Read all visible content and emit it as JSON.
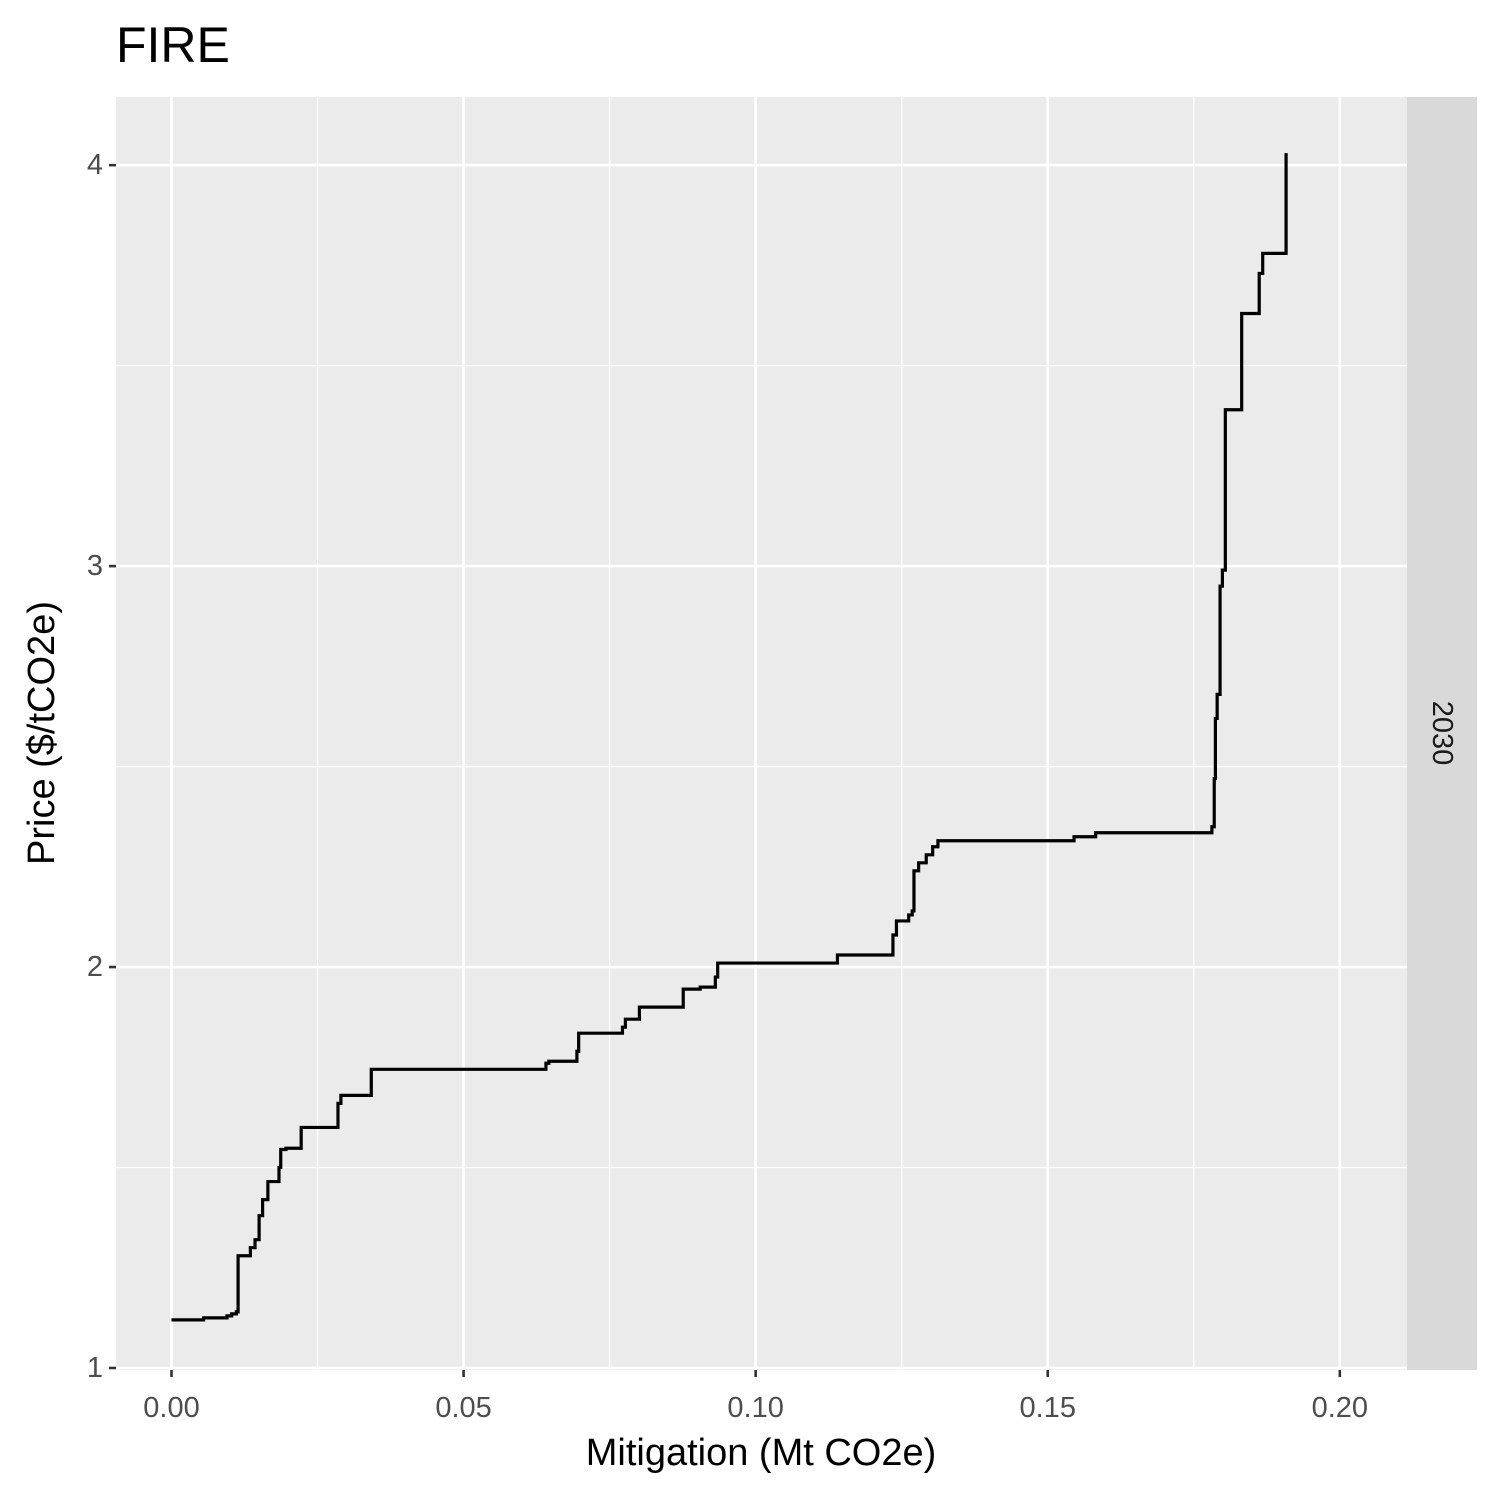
{
  "chart_data": {
    "type": "line",
    "title": "FIRE",
    "xlabel": "Mitigation (Mt CO2e)",
    "ylabel": "Price ($/tCO2e)",
    "facet_label": "2030",
    "xlim": [
      -0.0095,
      0.2115
    ],
    "ylim": [
      0.995,
      4.17
    ],
    "x_ticks": [
      0.0,
      0.05,
      0.1,
      0.15,
      0.2
    ],
    "x_tick_labels": [
      "0.00",
      "0.05",
      "0.10",
      "0.15",
      "0.20"
    ],
    "y_ticks": [
      1,
      2,
      3,
      4
    ],
    "y_tick_labels": [
      "1",
      "2",
      "3",
      "4"
    ],
    "grid": true,
    "colors": {
      "panel": "#ebebeb",
      "grid": "#ffffff",
      "strip": "#d9d9d9",
      "line": "#000000",
      "ticks": "#333333"
    },
    "series": [
      {
        "step": "hv",
        "x": [
          0.0,
          0.0055,
          0.0095,
          0.0103,
          0.0111,
          0.0114,
          0.0135,
          0.0143,
          0.015,
          0.0156,
          0.0165,
          0.0184,
          0.0187,
          0.0196,
          0.0222,
          0.0285,
          0.029,
          0.0342,
          0.0641,
          0.0646,
          0.0694,
          0.0697,
          0.0772,
          0.0777,
          0.0801,
          0.0876,
          0.0905,
          0.0931,
          0.0935,
          0.114,
          0.1235,
          0.1241,
          0.1262,
          0.1268,
          0.1271,
          0.1279,
          0.1292,
          0.1303,
          0.1312,
          0.1545,
          0.1582,
          0.1781,
          0.1785,
          0.1787,
          0.179,
          0.1795,
          0.1799,
          0.1804,
          0.1811,
          0.1832,
          0.1862,
          0.1868,
          0.1908
        ],
        "y": [
          1.12,
          1.125,
          1.13,
          1.135,
          1.14,
          1.28,
          1.3,
          1.32,
          1.38,
          1.42,
          1.465,
          1.5,
          1.545,
          1.548,
          1.6,
          1.66,
          1.68,
          1.745,
          1.76,
          1.765,
          1.79,
          1.835,
          1.85,
          1.87,
          1.9,
          1.945,
          1.95,
          1.975,
          2.01,
          2.03,
          2.08,
          2.115,
          2.13,
          2.14,
          2.24,
          2.26,
          2.28,
          2.3,
          2.315,
          2.325,
          2.335,
          2.35,
          2.47,
          2.62,
          2.68,
          2.95,
          2.99,
          3.39,
          3.39,
          3.63,
          3.73,
          3.78,
          4.03
        ]
      }
    ]
  }
}
